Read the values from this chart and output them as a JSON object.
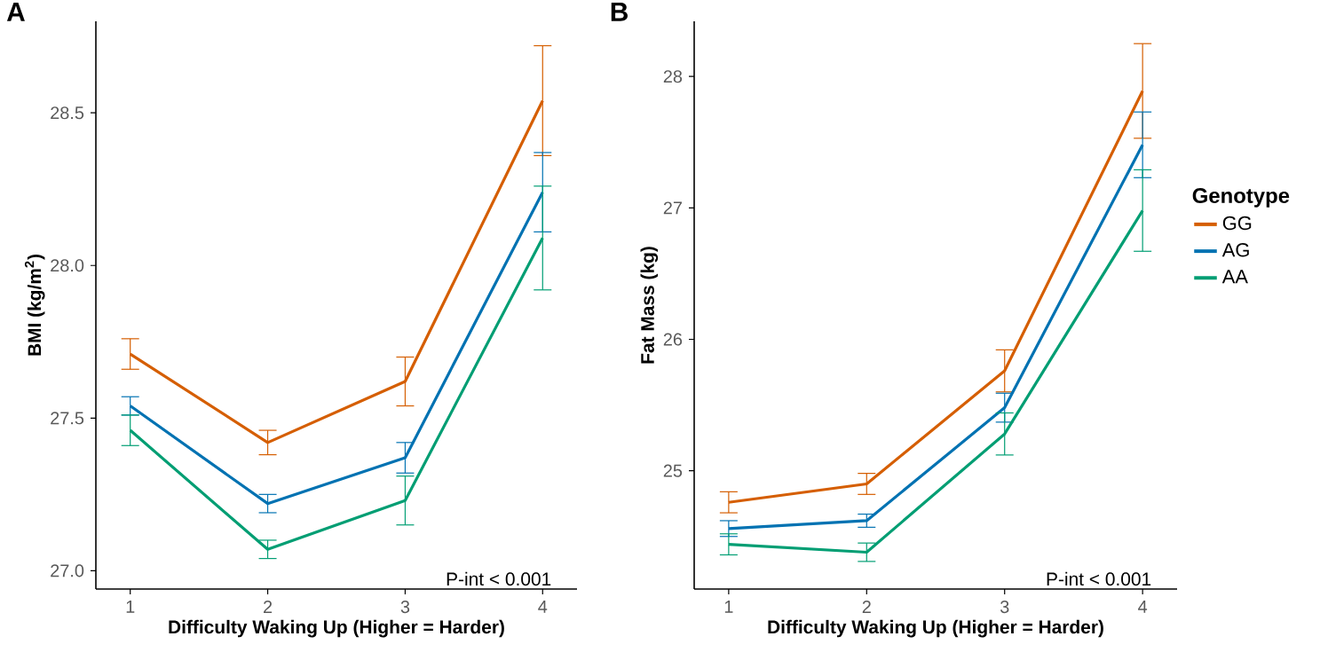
{
  "chart_data": [
    {
      "type": "line",
      "title": "A",
      "xlabel": "Difficulty Waking Up (Higher = Harder)",
      "ylabel": "BMI (kg/m$^{2}$)",
      "x": [
        1,
        2,
        3,
        4
      ],
      "xlim": [
        0.75,
        4.25
      ],
      "xticks": [
        1,
        2,
        3,
        4
      ],
      "ylim": [
        26.94,
        28.8
      ],
      "yticks": [
        {
          "value": 27.0,
          "label": "27.0"
        },
        {
          "value": 27.5,
          "label": "27.5"
        },
        {
          "value": 28.0,
          "label": "28.0"
        },
        {
          "value": 28.5,
          "label": "28.5"
        }
      ],
      "grid": false,
      "legend": false,
      "marker": "none",
      "line_style": "solid",
      "annotations": [
        "P-int < 0.001"
      ],
      "series": [
        {
          "color": "#d55e00",
          "values": [
            27.71,
            27.42,
            27.62,
            28.54
          ],
          "errors": [
            0.05,
            0.04,
            0.08,
            0.18
          ]
        },
        {
          "color": "#0072b2",
          "values": [
            27.54,
            27.22,
            27.37,
            28.24
          ],
          "errors": [
            0.03,
            0.03,
            0.05,
            0.13
          ]
        },
        {
          "color": "#009e73",
          "values": [
            27.46,
            27.07,
            27.23,
            28.09
          ],
          "errors": [
            0.05,
            0.03,
            0.08,
            0.17
          ]
        }
      ]
    },
    {
      "type": "line",
      "title": "B",
      "xlabel": "Difficulty Waking Up (Higher = Harder)",
      "ylabel": "Fat Mass (kg)",
      "x": [
        1,
        2,
        3,
        4
      ],
      "xlim": [
        0.75,
        4.25
      ],
      "xticks": [
        1,
        2,
        3,
        4
      ],
      "ylim": [
        24.1,
        28.42
      ],
      "yticks": [
        25,
        26,
        27,
        28
      ],
      "grid": false,
      "legend": "right",
      "legend_title": "Genotype",
      "marker": "none",
      "line_style": "solid",
      "annotations": [
        "P-int < 0.001"
      ],
      "series": [
        {
          "name": "GG",
          "color": "#d55e00",
          "values": [
            24.76,
            24.9,
            25.76,
            27.89
          ],
          "errors": [
            0.08,
            0.08,
            0.16,
            0.36
          ]
        },
        {
          "name": "AG",
          "color": "#0072b2",
          "values": [
            24.56,
            24.62,
            25.48,
            27.48
          ],
          "errors": [
            0.06,
            0.05,
            0.11,
            0.25
          ]
        },
        {
          "name": "AA",
          "color": "#009e73",
          "values": [
            24.44,
            24.38,
            25.28,
            26.98
          ],
          "errors": [
            0.08,
            0.07,
            0.16,
            0.31
          ]
        }
      ]
    }
  ]
}
